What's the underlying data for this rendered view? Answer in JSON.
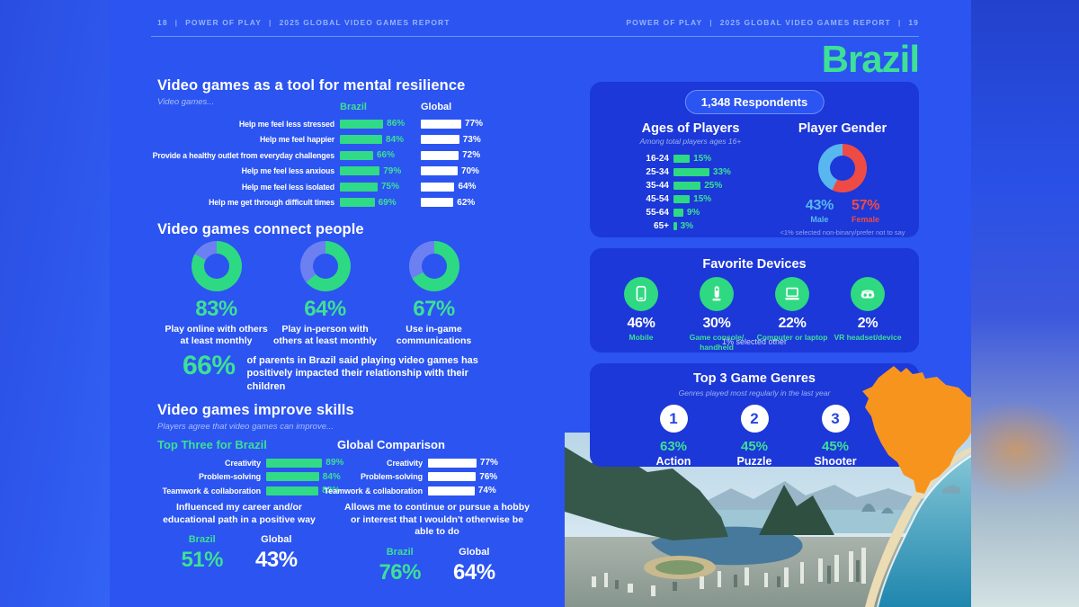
{
  "header": {
    "left_page": "18",
    "right_page": "19",
    "brand": "POWER OF PLAY",
    "report": "2025 GLOBAL VIDEO GAMES REPORT",
    "sep": "|"
  },
  "country_title": "Brazil",
  "colors": {
    "page_blue": "#2b54f1",
    "panel_blue": "#1c38d8",
    "green": "#2ed983",
    "accent_green": "#3ee095",
    "donut_rest": "#6d80f2",
    "male_blue": "#58b7ee",
    "female_red": "#ef4b45",
    "white": "#ffffff",
    "map_orange": "#f7941d"
  },
  "resilience": {
    "title": "Video games as a tool for mental resilience",
    "subtitle": "Video games...",
    "col_brazil": "Brazil",
    "col_global": "Global",
    "rows": [
      {
        "label": "Help me feel less stressed",
        "brazil": "86%",
        "global": "77%"
      },
      {
        "label": "Help me feel happier",
        "brazil": "84%",
        "global": "73%"
      },
      {
        "label": "Provide a healthy outlet from everyday challenges",
        "brazil": "66%",
        "global": "72%"
      },
      {
        "label": "Help me feel less anxious",
        "brazil": "79%",
        "global": "70%"
      },
      {
        "label": "Help me feel less isolated",
        "brazil": "75%",
        "global": "64%"
      },
      {
        "label": "Help me get through difficult times",
        "brazil": "69%",
        "global": "62%"
      }
    ]
  },
  "connect": {
    "title": "Video games connect people",
    "donuts": [
      {
        "value": "83%",
        "label": "Play online with others at least monthly"
      },
      {
        "value": "64%",
        "label": "Play in-person with others at least monthly"
      },
      {
        "value": "67%",
        "label": "Use in-game communications"
      }
    ]
  },
  "parents_stat": {
    "value": "66%",
    "text": "of parents in Brazil said playing video games has positively impacted their relationship with their children"
  },
  "skills": {
    "title": "Video games improve skills",
    "subtitle": "Players agree that video games can improve...",
    "brazil_header": "Top Three for Brazil",
    "global_header": "Global Comparison",
    "brazil_rows": [
      {
        "label": "Creativity",
        "value": "89%"
      },
      {
        "label": "Problem-solving",
        "value": "84%"
      },
      {
        "label": "Teamwork & collaboration",
        "value": "83%"
      }
    ],
    "global_rows": [
      {
        "label": "Creativity",
        "value": "77%"
      },
      {
        "label": "Problem-solving",
        "value": "76%"
      },
      {
        "label": "Teamwork & collaboration",
        "value": "74%"
      }
    ]
  },
  "career": {
    "blocks": [
      {
        "caption": "Influenced my career and/or educational path in a positive way",
        "brazil_label": "Brazil",
        "brazil": "51%",
        "global_label": "Global",
        "global": "43%"
      },
      {
        "caption": "Allows me to continue or pursue a hobby or interest that I wouldn't otherwise be able to do",
        "brazil_label": "Brazil",
        "brazil": "76%",
        "global_label": "Global",
        "global": "64%"
      }
    ]
  },
  "respondents": {
    "pill": "1,348 Respondents",
    "ages": {
      "title": "Ages of Players",
      "subtitle": "Among total players ages 16+",
      "rows": [
        {
          "label": "16-24",
          "value": "15%"
        },
        {
          "label": "25-34",
          "value": "33%"
        },
        {
          "label": "35-44",
          "value": "25%"
        },
        {
          "label": "45-54",
          "value": "15%"
        },
        {
          "label": "55-64",
          "value": "9%"
        },
        {
          "label": "65+",
          "value": "3%"
        }
      ]
    },
    "gender": {
      "title": "Player Gender",
      "male": "43%",
      "male_label": "Male",
      "female": "57%",
      "female_label": "Female",
      "footnote": "<1% selected non-binary/prefer not to say"
    }
  },
  "devices": {
    "title": "Favorite Devices",
    "items": [
      {
        "value": "46%",
        "label": "Mobile",
        "icon": "mobile-icon"
      },
      {
        "value": "30%",
        "label": "Game console/ handheld",
        "icon": "console-icon"
      },
      {
        "value": "22%",
        "label": "Computer or laptop",
        "icon": "laptop-icon"
      },
      {
        "value": "2%",
        "label": "VR headset/device",
        "icon": "vr-icon"
      }
    ],
    "footnote": "1% selected other"
  },
  "genres": {
    "title": "Top 3 Game Genres",
    "subtitle": "Genres played most regularly in the last year",
    "items": [
      {
        "rank": "1",
        "value": "63%",
        "label": "Action"
      },
      {
        "rank": "2",
        "value": "45%",
        "label": "Puzzle"
      },
      {
        "rank": "3",
        "value": "45%",
        "label": "Shooter"
      }
    ]
  },
  "chart_data": [
    {
      "type": "bar",
      "title": "Video games as a tool for mental resilience",
      "categories": [
        "Help me feel less stressed",
        "Help me feel happier",
        "Provide a healthy outlet from everyday challenges",
        "Help me feel less anxious",
        "Help me feel less isolated",
        "Help me get through difficult times"
      ],
      "series": [
        {
          "name": "Brazil",
          "values": [
            86,
            84,
            66,
            79,
            75,
            69
          ]
        },
        {
          "name": "Global",
          "values": [
            77,
            73,
            72,
            70,
            64,
            62
          ]
        }
      ],
      "unit": "%",
      "xlim": [
        0,
        100
      ],
      "orientation": "horizontal"
    },
    {
      "type": "pie",
      "title": "Video games connect people (three donuts, value vs remainder)",
      "slices": [
        {
          "label": "Play online with others at least monthly",
          "value": 83
        },
        {
          "label": "Play in-person with others at least monthly",
          "value": 64
        },
        {
          "label": "Use in-game communications",
          "value": 67
        }
      ],
      "unit": "%"
    },
    {
      "type": "bar",
      "title": "Video games improve skills — Top Three for Brazil",
      "categories": [
        "Creativity",
        "Problem-solving",
        "Teamwork & collaboration"
      ],
      "values": [
        89,
        84,
        83
      ],
      "unit": "%"
    },
    {
      "type": "bar",
      "title": "Video games improve skills — Global Comparison",
      "categories": [
        "Creativity",
        "Problem-solving",
        "Teamwork & collaboration"
      ],
      "values": [
        77,
        76,
        74
      ],
      "unit": "%"
    },
    {
      "type": "bar",
      "title": "Ages of Players (among total players ages 16+)",
      "categories": [
        "16-24",
        "25-34",
        "35-44",
        "45-54",
        "55-64",
        "65+"
      ],
      "values": [
        15,
        33,
        25,
        15,
        9,
        3
      ],
      "unit": "%"
    },
    {
      "type": "pie",
      "title": "Player Gender",
      "slices": [
        {
          "label": "Male",
          "value": 43
        },
        {
          "label": "Female",
          "value": 57
        }
      ],
      "note": "<1% selected non-binary/prefer not to say",
      "unit": "%"
    },
    {
      "type": "bar",
      "title": "Favorite Devices",
      "categories": [
        "Mobile",
        "Game console/handheld",
        "Computer or laptop",
        "VR headset/device"
      ],
      "values": [
        46,
        30,
        22,
        2
      ],
      "note": "1% selected other",
      "unit": "%"
    },
    {
      "type": "bar",
      "title": "Top 3 Game Genres (played most regularly in the last year)",
      "categories": [
        "Action",
        "Puzzle",
        "Shooter"
      ],
      "values": [
        63,
        45,
        45
      ],
      "unit": "%"
    }
  ]
}
